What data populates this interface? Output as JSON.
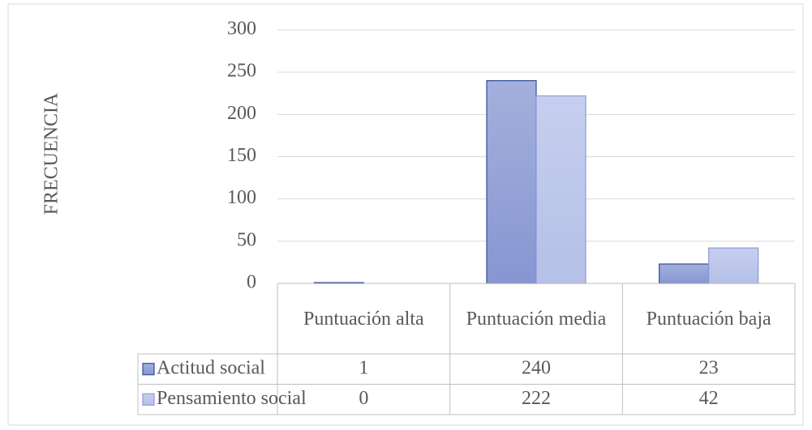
{
  "chart_data": {
    "type": "bar",
    "y_label": "FRECUENCIA",
    "categories": [
      "Puntuación alta",
      "Puntuación media",
      "Puntuación baja"
    ],
    "series": [
      {
        "name": "Actitud social",
        "color": "#95a4d8",
        "values": [
          1,
          240,
          23
        ]
      },
      {
        "name": "Pensamiento social",
        "color": "#bcc5e9",
        "values": [
          0,
          222,
          42
        ]
      }
    ],
    "ylim": [
      0,
      300
    ],
    "yticks": [
      0,
      50,
      100,
      150,
      200,
      250,
      300
    ],
    "grid": true,
    "data_table": true
  }
}
